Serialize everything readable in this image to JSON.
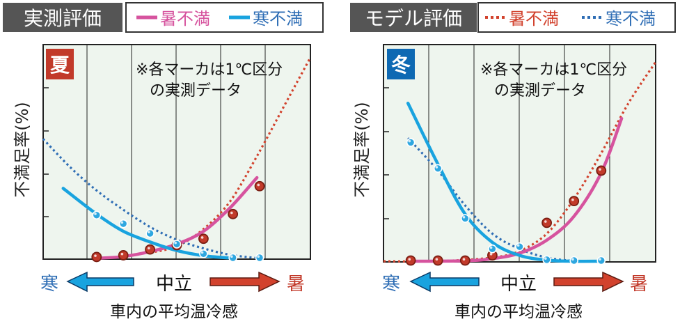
{
  "colors": {
    "hot_line": "#d6539e",
    "cold_line": "#19a3df",
    "hot_model": "#d2422d",
    "cold_model": "#2f6eb5",
    "hot_marker": "#c23a2a",
    "cold_marker": "#2ea7e0",
    "plot_bg": "#eef5ee",
    "header_dark": "#555555",
    "summer_badge": "#c23a2a",
    "winter_badge": "#0e69b3"
  },
  "panels": [
    {
      "header": {
        "title": "実測評価",
        "legend_hot": "暑不満",
        "legend_cold": "寒不満",
        "line_style": "solid"
      },
      "badge": "夏",
      "note_line1": "※各マーカは1℃区分",
      "note_line2": "の実測データ",
      "ylabel": "不満足率(%)",
      "axis": {
        "cold": "寒",
        "neutral": "中立",
        "hot": "暑"
      },
      "xlabel": "車内の平均温冷感"
    },
    {
      "header": {
        "title": "モデル評価",
        "legend_hot": "暑不満",
        "legend_cold": "寒不満",
        "line_style": "dotted"
      },
      "badge": "冬",
      "note_line1": "※各マーカは1℃区分",
      "note_line2": "の実測データ",
      "ylabel": "不満足率(%)",
      "axis": {
        "cold": "寒",
        "neutral": "中立",
        "hot": "暑"
      },
      "xlabel": "車内の平均温冷感"
    }
  ],
  "chart_data": [
    {
      "type": "scatter",
      "title": "夏",
      "ylabel": "不満足率(%)",
      "xlabel": "車内の平均温冷感",
      "x_scale": "relative (寒 ← 中立 → 暑)",
      "xlim": [
        -1,
        1
      ],
      "ylim": [
        0,
        100
      ],
      "grid": "vertical lines, 5 ticks on y",
      "series": [
        {
          "name": "暑不満",
          "kind": "measured_fit",
          "x": [
            -0.6,
            -0.4,
            -0.2,
            0,
            0.2,
            0.4,
            0.6
          ],
          "y": [
            0.4,
            1.2,
            3.5,
            7,
            13,
            24,
            38
          ]
        },
        {
          "name": "寒不満",
          "kind": "measured_fit",
          "x": [
            -0.85,
            -0.6,
            -0.4,
            -0.2,
            0,
            0.2,
            0.4
          ],
          "y": [
            33,
            21,
            13,
            8,
            4,
            1.6,
            0.5
          ]
        },
        {
          "name": "暑不満",
          "kind": "model",
          "x": [
            -0.2,
            0,
            0.2,
            0.4,
            0.6,
            0.8,
            1
          ],
          "y": [
            3,
            6,
            14,
            27,
            48,
            71,
            94
          ]
        },
        {
          "name": "寒不満",
          "kind": "model",
          "x": [
            -1,
            -0.8,
            -0.6,
            -0.4,
            -0.2,
            0,
            0.2,
            0.4,
            0.6
          ],
          "y": [
            56,
            43,
            32,
            23,
            15,
            9,
            5,
            2,
            0.5
          ]
        },
        {
          "kind": "hot_markers",
          "x": [
            -0.6,
            -0.4,
            -0.2,
            0,
            0.2,
            0.42,
            0.62
          ],
          "y": [
            1.0,
            1.8,
            4.5,
            6.5,
            9.5,
            21,
            34
          ]
        },
        {
          "kind": "cold_markers",
          "x": [
            -0.6,
            -0.4,
            -0.2,
            0,
            0.2,
            0.42,
            0.62
          ],
          "y": [
            20.5,
            16.5,
            12,
            7,
            2.5,
            0.5,
            0
          ]
        }
      ]
    },
    {
      "type": "scatter",
      "title": "冬",
      "ylabel": "不満足率(%)",
      "xlabel": "車内の平均温冷感",
      "x_scale": "relative (寒 ← 中立 → 暑)",
      "xlim": [
        -1,
        1
      ],
      "ylim": [
        0,
        100
      ],
      "grid": "vertical lines, 5 ticks on y",
      "series": [
        {
          "name": "暑不満",
          "kind": "measured_fit",
          "x": [
            -0.8,
            -0.4,
            -0.2,
            0,
            0.2,
            0.4,
            0.6,
            0.75
          ],
          "y": [
            0,
            0.5,
            1.5,
            4,
            10,
            21,
            41,
            66
          ]
        },
        {
          "name": "寒不満",
          "kind": "measured_fit",
          "x": [
            -0.82,
            -0.6,
            -0.4,
            -0.2,
            0,
            0.2,
            0.4,
            0.6
          ],
          "y": [
            73,
            45,
            22,
            9,
            3,
            0.8,
            0,
            0
          ]
        },
        {
          "name": "暑不満",
          "kind": "model",
          "x": [
            -1,
            -0.6,
            -0.2,
            0,
            0.2,
            0.4,
            0.6,
            0.8,
            1
          ],
          "y": [
            0,
            0,
            2,
            5,
            13,
            29,
            50,
            73,
            92
          ]
        },
        {
          "name": "寒不満",
          "kind": "model",
          "x": [
            -0.82,
            -0.6,
            -0.4,
            -0.2,
            0,
            0.2,
            0.4,
            0.6
          ],
          "y": [
            57,
            42,
            26,
            13,
            6,
            2,
            0.5,
            0
          ]
        },
        {
          "kind": "hot_markers",
          "x": [
            -0.8,
            -0.6,
            -0.4,
            -0.2,
            0.2,
            0.4,
            0.6
          ],
          "y": [
            -1,
            -1,
            0,
            3,
            18,
            28,
            42
          ]
        },
        {
          "kind": "cold_markers",
          "x": [
            -0.8,
            -0.6,
            -0.4,
            -0.2,
            0,
            0.2,
            0.4,
            0.6
          ],
          "y": [
            55,
            43,
            20,
            6,
            7,
            1,
            0,
            -1
          ]
        }
      ]
    }
  ]
}
